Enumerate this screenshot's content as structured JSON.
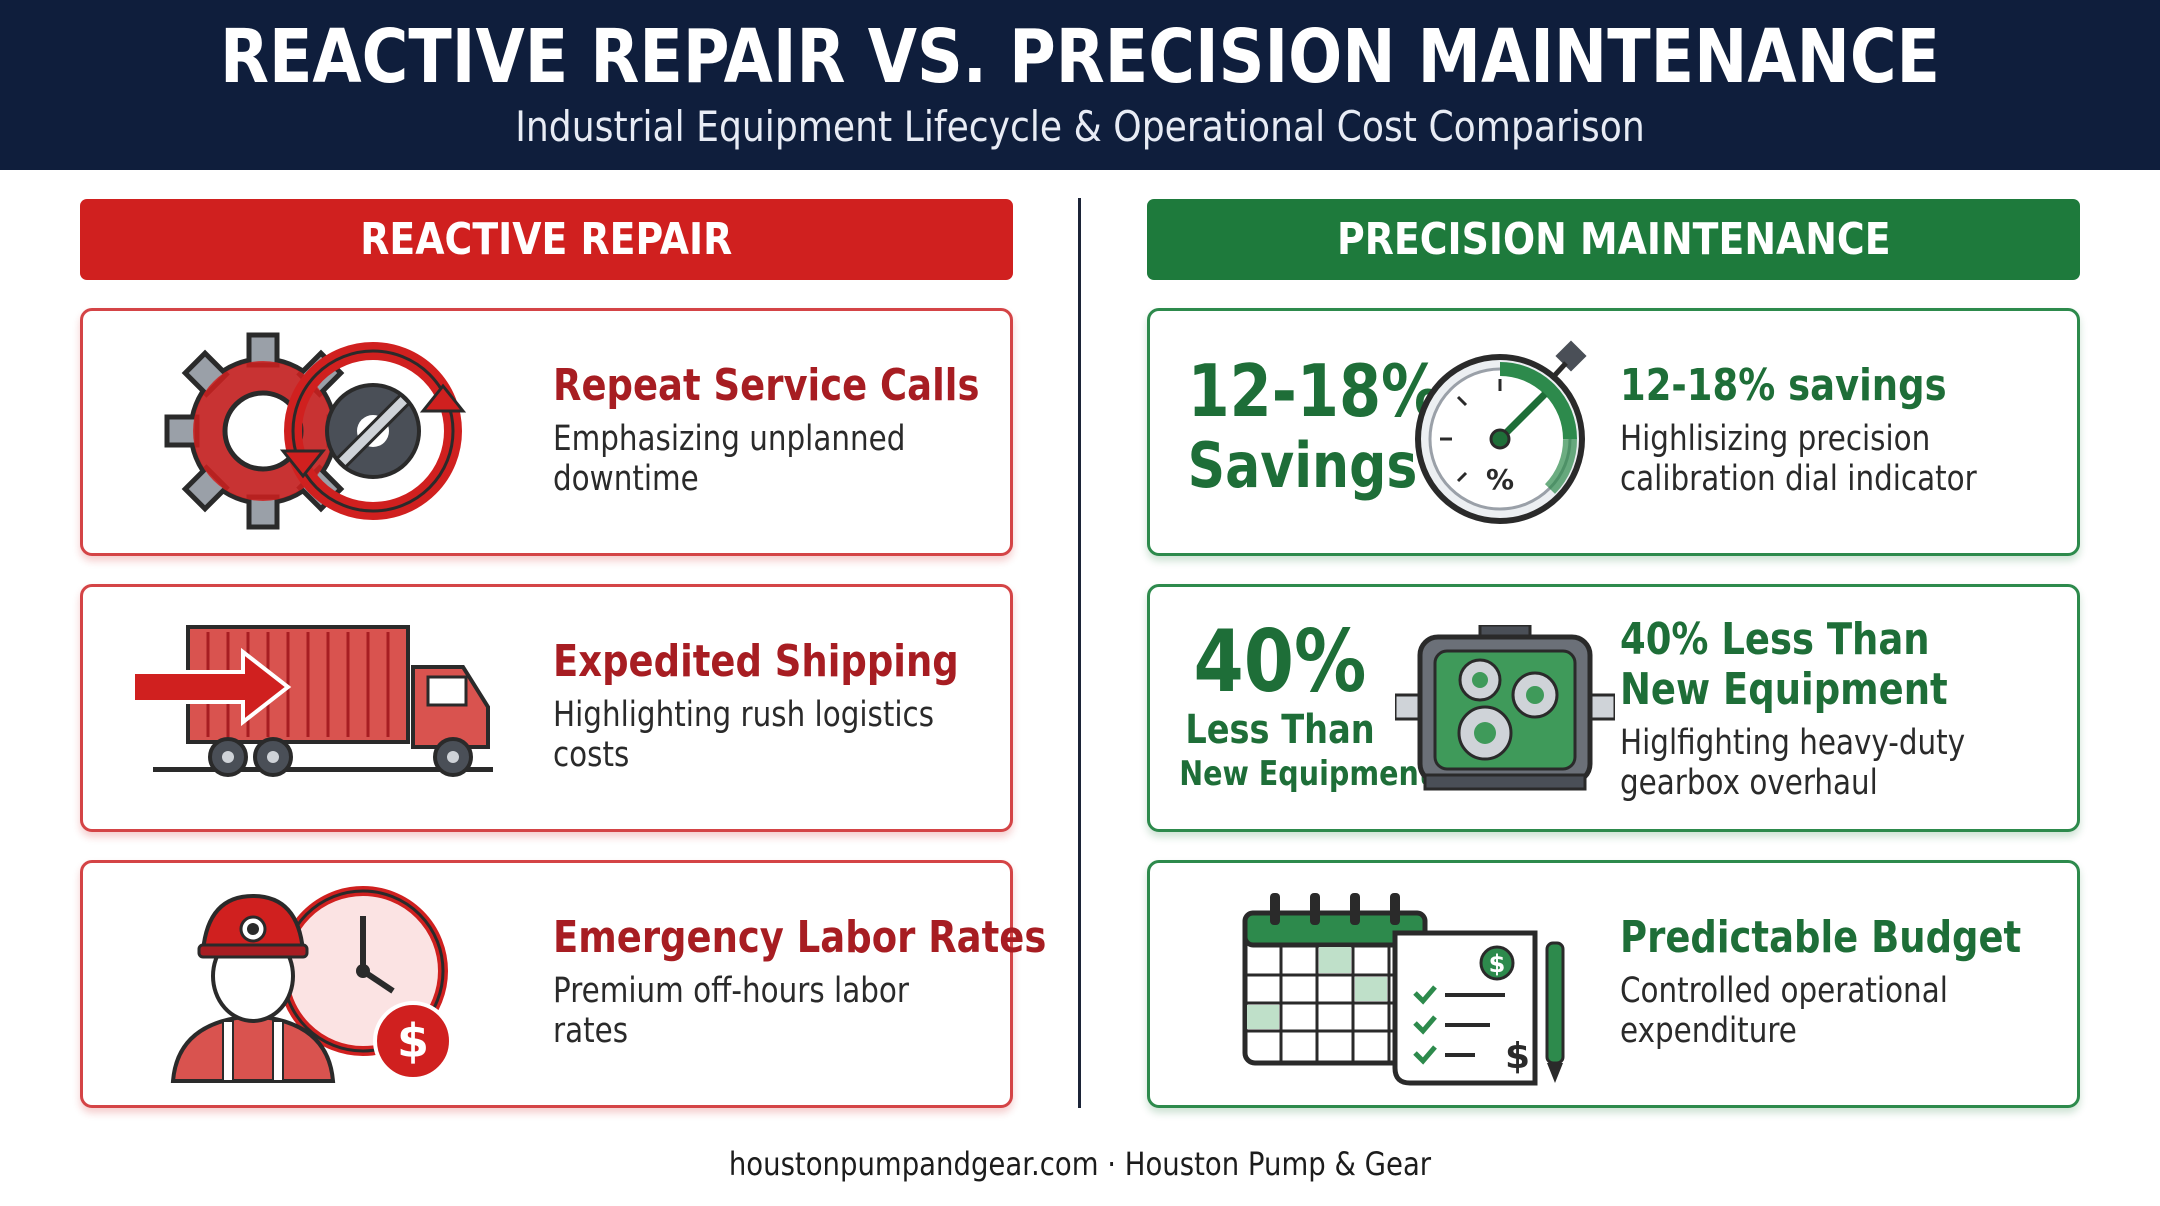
{
  "header": {
    "title": "REACTIVE REPAIR VS. PRECISION MAINTENANCE",
    "subtitle": "Industrial Equipment Lifecycle & Operational Cost Comparison"
  },
  "left": {
    "heading": "REACTIVE REPAIR",
    "color": "#d0201f",
    "cards": [
      {
        "icon": "gear-cycle-icon",
        "title": "Repeat Service Calls",
        "line1": "Emphasizing unplanned",
        "line2": "downtime"
      },
      {
        "icon": "delivery-truck-icon",
        "title": "Expedited Shipping",
        "line1": "Highlighting rush logistics",
        "line2": "costs"
      },
      {
        "icon": "technician-clock-icon",
        "title": "Emergency Labor Rates",
        "line1": "Premium off-hours labor",
        "line2": "rates"
      }
    ]
  },
  "right": {
    "heading": "PRECISION MAINTENANCE",
    "color": "#1e7a3c",
    "cards": [
      {
        "icon": "calibration-dial-icon",
        "stat_line1": "12-18%",
        "stat_line2": "Savings",
        "title": "12-18% savings",
        "line1": "Highlisizing precision",
        "line2": "calibration dial indicator"
      },
      {
        "icon": "gearbox-icon",
        "stat_line1": "40%",
        "stat_line2": "Less Than",
        "stat_line3": "New Equipment",
        "title_line1": "40% Less Than",
        "title_line2": "New Equipment",
        "line1": "Higlfighting heavy-duty",
        "line2": "gearbox overhaul"
      },
      {
        "icon": "calendar-budget-icon",
        "title": "Predictable Budget",
        "line1": "Controlled operational",
        "line2": "expenditure"
      }
    ]
  },
  "footer": "houstonpumpandgear.com · Houston Pump & Gear"
}
